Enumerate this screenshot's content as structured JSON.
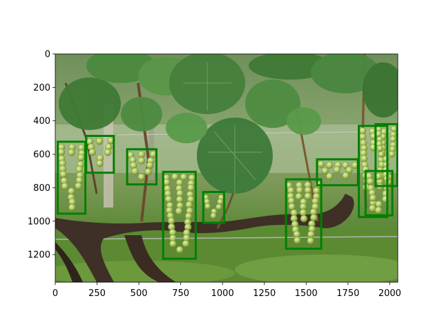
{
  "image": {
    "description_icon": "vineyard-grape-photo",
    "x_range": [
      0,
      2048
    ],
    "y_range": [
      1365,
      0
    ]
  },
  "axes": {
    "x_ticks": [
      {
        "value": 0,
        "label": "0"
      },
      {
        "value": 250,
        "label": "250"
      },
      {
        "value": 500,
        "label": "500"
      },
      {
        "value": 750,
        "label": "750"
      },
      {
        "value": 1000,
        "label": "1000"
      },
      {
        "value": 1250,
        "label": "1250"
      },
      {
        "value": 1500,
        "label": "1500"
      },
      {
        "value": 1750,
        "label": "1750"
      },
      {
        "value": 2000,
        "label": "2000"
      }
    ],
    "y_ticks": [
      {
        "value": 0,
        "label": "0"
      },
      {
        "value": 200,
        "label": "200"
      },
      {
        "value": 400,
        "label": "400"
      },
      {
        "value": 600,
        "label": "600"
      },
      {
        "value": 800,
        "label": "800"
      },
      {
        "value": 1000,
        "label": "1000"
      },
      {
        "value": 1200,
        "label": "1200"
      }
    ]
  },
  "detections": {
    "color": "#008000",
    "boxes": [
      {
        "x1": 15,
        "y1": 525,
        "x2": 180,
        "y2": 955
      },
      {
        "x1": 185,
        "y1": 490,
        "x2": 350,
        "y2": 710
      },
      {
        "x1": 430,
        "y1": 570,
        "x2": 605,
        "y2": 780
      },
      {
        "x1": 645,
        "y1": 705,
        "x2": 840,
        "y2": 1225
      },
      {
        "x1": 885,
        "y1": 825,
        "x2": 1010,
        "y2": 1010
      },
      {
        "x1": 1380,
        "y1": 750,
        "x2": 1590,
        "y2": 1165
      },
      {
        "x1": 1565,
        "y1": 630,
        "x2": 1810,
        "y2": 785
      },
      {
        "x1": 1815,
        "y1": 430,
        "x2": 1985,
        "y2": 975
      },
      {
        "x1": 1855,
        "y1": 700,
        "x2": 2015,
        "y2": 965
      },
      {
        "x1": 1915,
        "y1": 420,
        "x2": 2045,
        "y2": 790
      }
    ]
  }
}
